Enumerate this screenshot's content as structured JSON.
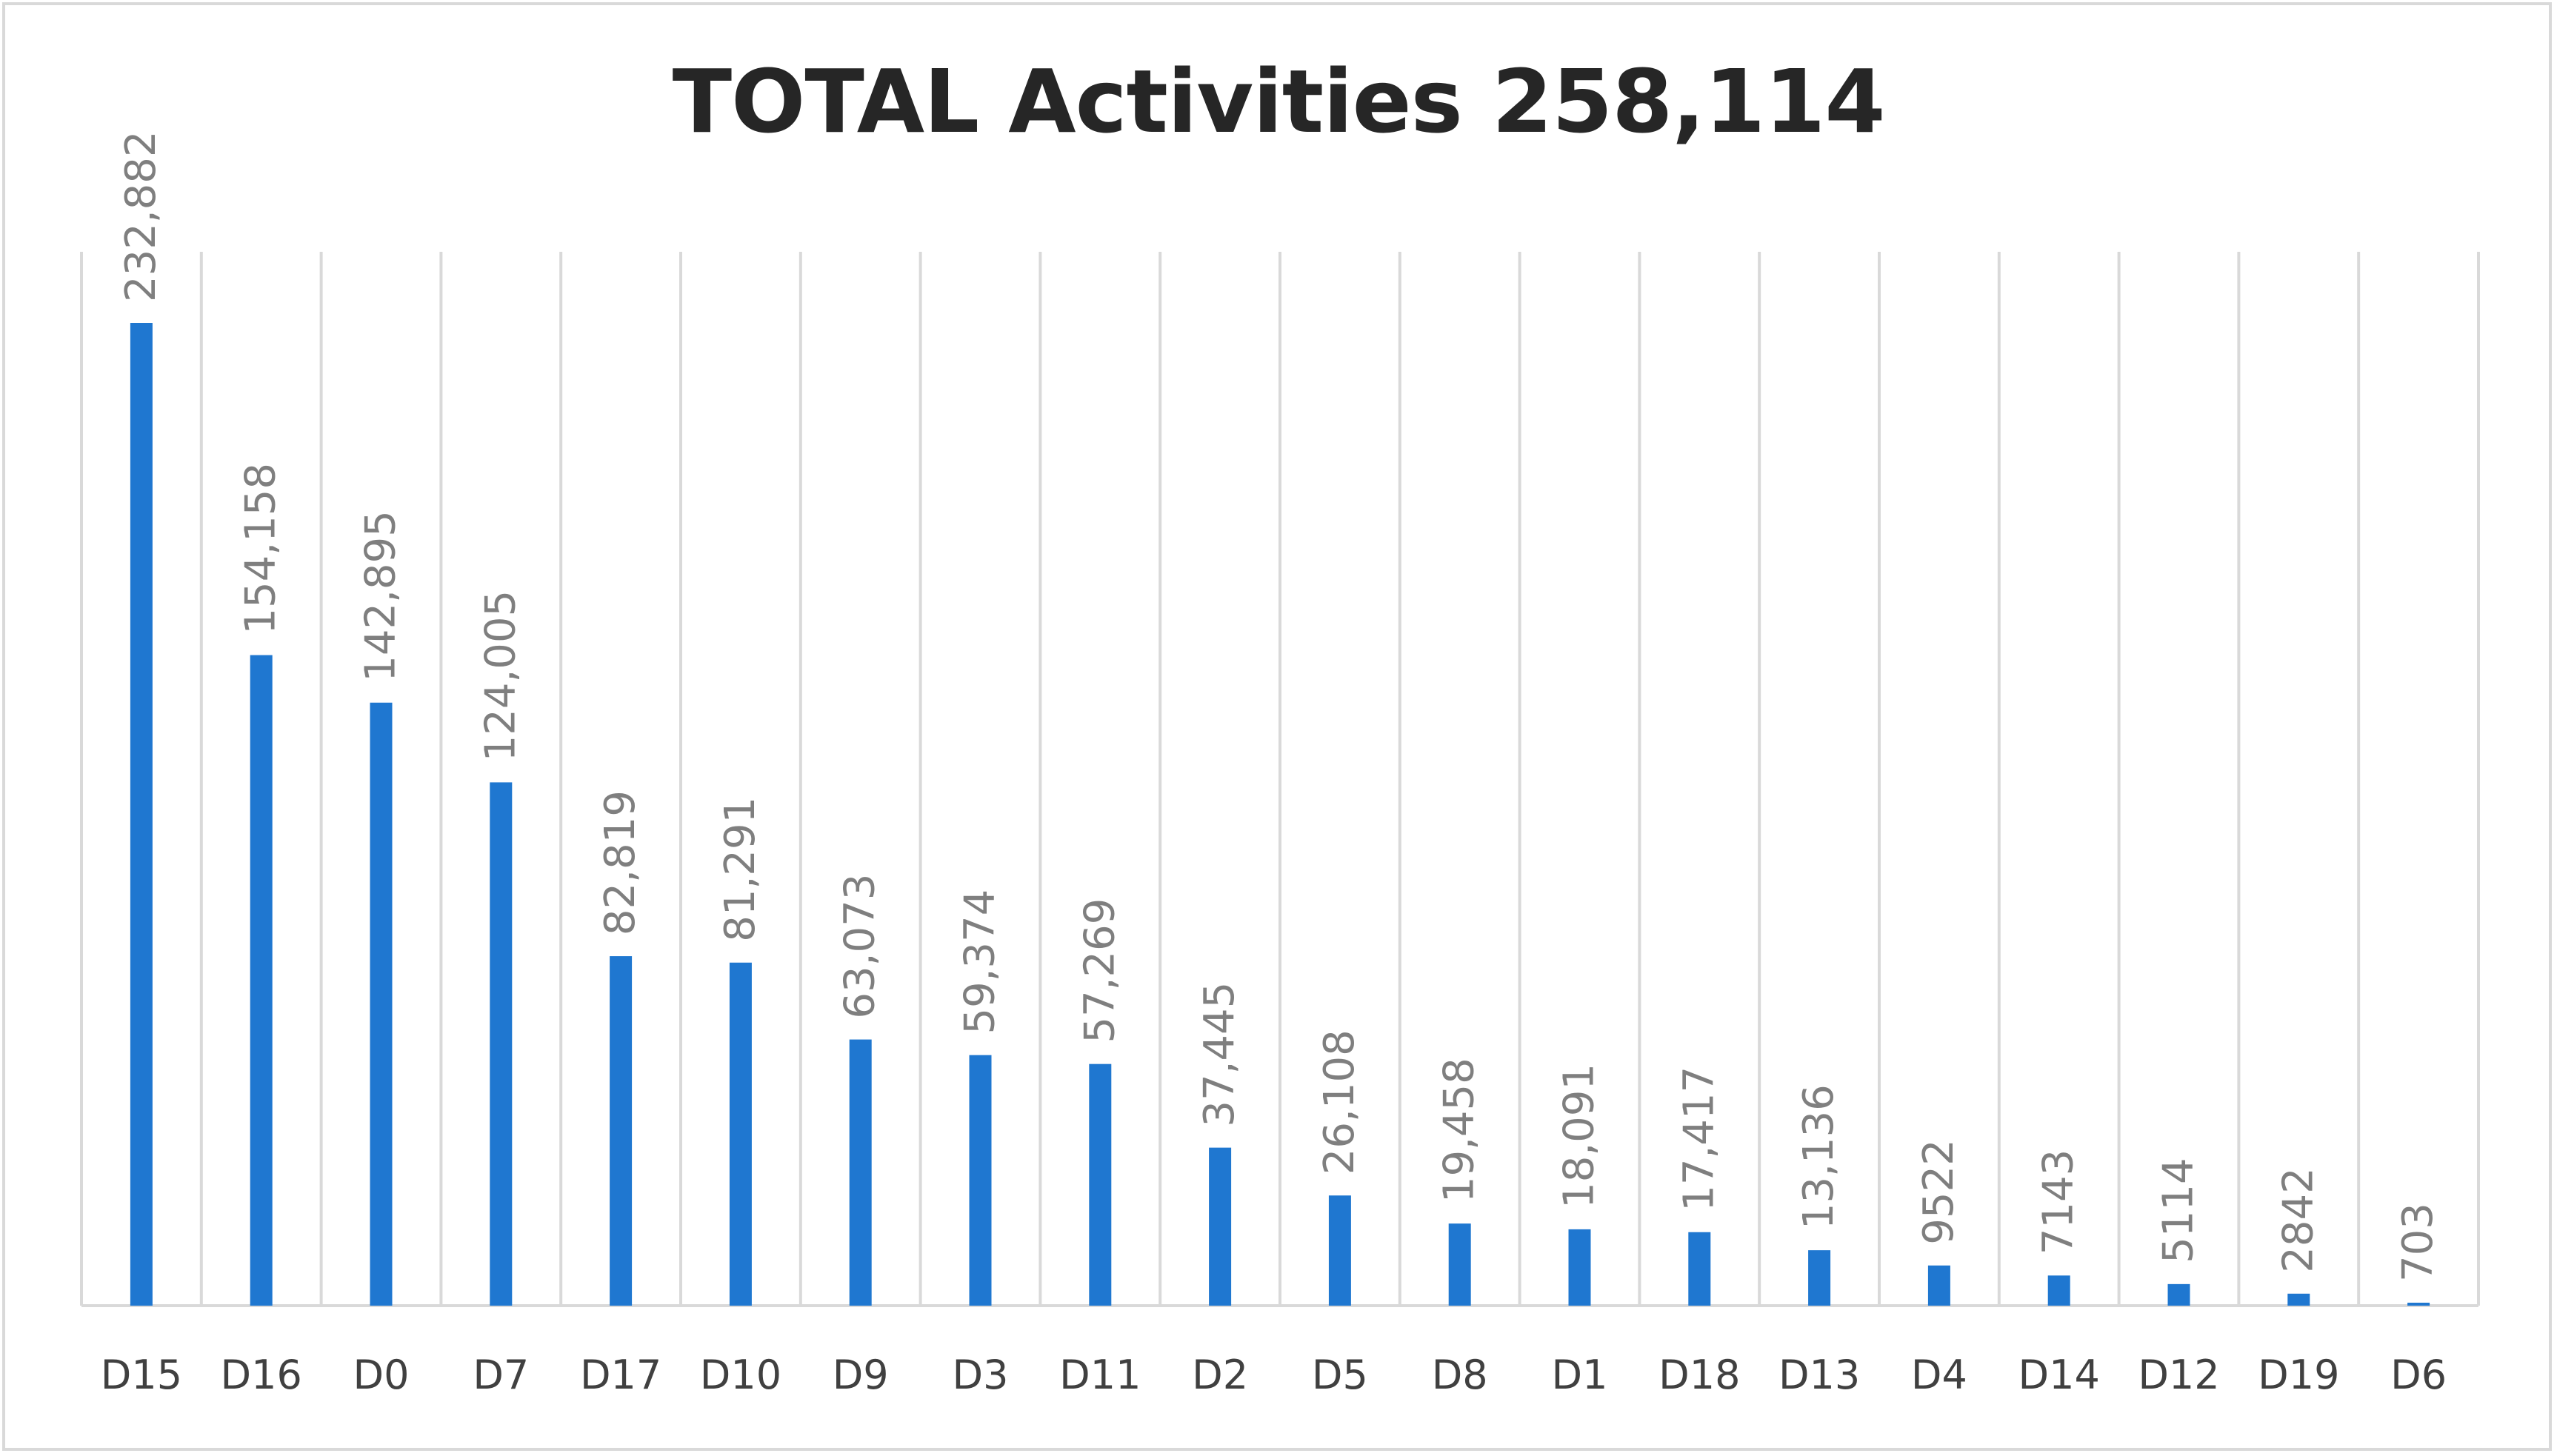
{
  "chart_data": {
    "type": "bar",
    "title": "TOTAL Activities 258,114",
    "xlabel": "",
    "ylabel": "",
    "ylim": [
      0,
      258114
    ],
    "grid": "vertical",
    "legend": "none",
    "colors": {
      "bar": "#1f77d0",
      "grid": "#d9d9d9",
      "label": "#7f7f7f",
      "axis_text": "#404040",
      "title": "#262626"
    },
    "categories": [
      "D15",
      "D16",
      "D0",
      "D7",
      "D17",
      "D10",
      "D9",
      "D3",
      "D11",
      "D2",
      "D5",
      "D8",
      "D1",
      "D18",
      "D13",
      "D4",
      "D14",
      "D12",
      "D19",
      "D6"
    ],
    "values": [
      232882,
      154158,
      142895,
      124005,
      82819,
      81291,
      63073,
      59374,
      57269,
      37445,
      26108,
      19458,
      18091,
      17417,
      13136,
      9522,
      7143,
      5114,
      2842,
      703
    ],
    "data_labels": [
      "232,882",
      "154,158",
      "142,895",
      "124,005",
      "82,819",
      "81,291",
      "63,073",
      "59,374",
      "57,269",
      "37,445",
      "26,108",
      "19,458",
      "18,091",
      "17,417",
      "13,136",
      "9522",
      "7143",
      "5114",
      "2842",
      "703"
    ]
  }
}
